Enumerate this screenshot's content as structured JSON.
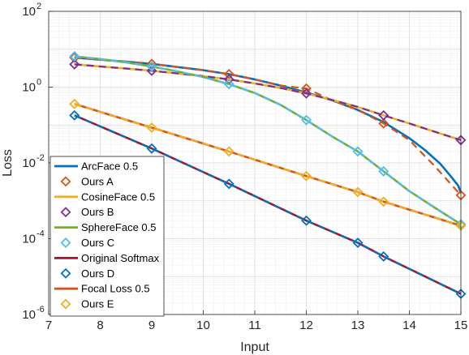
{
  "chart_data": {
    "type": "line",
    "title": "",
    "xlabel": "Input",
    "ylabel": "Loss",
    "xlim": [
      7,
      15
    ],
    "ylim": [
      1e-06,
      100
    ],
    "yscale": "log",
    "grid": true,
    "legend_position": "bottom-left",
    "xticks": [
      7,
      8,
      9,
      10,
      11,
      12,
      13,
      14,
      15
    ],
    "x_tick_labels": [
      "7",
      "8",
      "9",
      "10",
      "11",
      "12",
      "13",
      "14",
      "15"
    ],
    "y_tick_labels": [
      {
        "base": "10",
        "exp": "-6"
      },
      {
        "base": "10",
        "exp": "-4"
      },
      {
        "base": "10",
        "exp": "-2"
      },
      {
        "base": "10",
        "exp": "0"
      },
      {
        "base": "10",
        "exp": "2"
      }
    ],
    "series": [
      {
        "name": "ArcFace 0.5",
        "color": "#0072BD",
        "style": "solid",
        "marker": "none",
        "x": [
          7.5,
          8,
          8.5,
          9,
          9.5,
          10,
          10.5,
          11,
          11.5,
          12,
          12.5,
          13,
          13.5,
          14,
          14.3,
          14.6,
          14.8,
          14.95,
          15
        ],
        "y": [
          6.0,
          5.3,
          4.7,
          4.1,
          3.4,
          2.8,
          2.2,
          1.6,
          1.1,
          0.72,
          0.45,
          0.25,
          0.12,
          0.045,
          0.022,
          0.0095,
          0.0045,
          0.0025,
          0.0016
        ]
      },
      {
        "name": "Ours A",
        "color": "#D95319",
        "style": "dashed",
        "marker": "diamond",
        "x": [
          7.5,
          8,
          8.5,
          9,
          9.5,
          10,
          10.5,
          11,
          11.5,
          12,
          12.5,
          13,
          13.5,
          14,
          14.5,
          15
        ],
        "y": [
          6.0,
          5.3,
          4.7,
          4.1,
          3.4,
          2.8,
          2.2,
          1.6,
          1.1,
          0.92,
          0.45,
          0.25,
          0.11,
          0.04,
          0.008,
          0.0014
        ],
        "marker_x": [
          7.5,
          9,
          10.5,
          12,
          13.5,
          15
        ]
      },
      {
        "name": "CosineFace 0.5",
        "color": "#EDB120",
        "style": "solid",
        "marker": "none",
        "x": [
          7.5,
          8,
          8.5,
          9,
          9.5,
          10,
          10.5,
          11,
          11.5,
          12,
          12.5,
          13,
          13.5,
          14,
          14.5,
          15
        ],
        "y": [
          4.0,
          3.5,
          3.1,
          2.7,
          2.3,
          1.95,
          1.6,
          1.25,
          0.95,
          0.68,
          0.46,
          0.3,
          0.18,
          0.11,
          0.066,
          0.04
        ]
      },
      {
        "name": "Ours B",
        "color": "#7E2F8E",
        "style": "dashed",
        "marker": "diamond",
        "x": [
          7.5,
          8,
          8.5,
          9,
          9.5,
          10,
          10.5,
          11,
          11.5,
          12,
          12.5,
          13,
          13.5,
          14,
          14.5,
          15
        ],
        "y": [
          4.0,
          3.5,
          3.1,
          2.7,
          2.3,
          1.95,
          1.6,
          1.25,
          0.95,
          0.68,
          0.46,
          0.3,
          0.18,
          0.11,
          0.066,
          0.04
        ],
        "marker_x": [
          7.5,
          9,
          10.5,
          12,
          13.5,
          15
        ]
      },
      {
        "name": "SphereFace 0.5",
        "color": "#77AC30",
        "style": "solid",
        "marker": "none",
        "x": [
          7.5,
          8,
          8.5,
          9,
          9.5,
          10,
          10.5,
          11,
          11.5,
          12,
          12.5,
          13,
          13.5,
          14,
          14.5,
          15
        ],
        "y": [
          6.5,
          5.5,
          4.5,
          3.5,
          2.6,
          1.85,
          1.2,
          0.7,
          0.34,
          0.135,
          0.05,
          0.02,
          0.006,
          0.0018,
          0.00065,
          0.00024
        ]
      },
      {
        "name": "Ours C",
        "color": "#4DBEEE",
        "style": "dashed",
        "marker": "diamond",
        "x": [
          7.5,
          8,
          8.5,
          9,
          9.5,
          10,
          10.5,
          11,
          11.5,
          12,
          12.5,
          13,
          13.5,
          14,
          14.5,
          15
        ],
        "y": [
          6.5,
          5.5,
          4.5,
          3.5,
          2.6,
          1.85,
          1.2,
          0.7,
          0.34,
          0.135,
          0.05,
          0.02,
          0.006,
          0.0018,
          0.00065,
          0.00024
        ],
        "marker_x": [
          7.5,
          9,
          10.5,
          12,
          13,
          13.5,
          15
        ]
      },
      {
        "name": "Original Softmax",
        "color": "#A2142F",
        "style": "solid",
        "marker": "none",
        "x": [
          7.5,
          9,
          10.5,
          12,
          13,
          13.5,
          15
        ],
        "y": [
          0.18,
          0.024,
          0.0028,
          0.0003,
          7.8e-05,
          3.4e-05,
          3.5e-06
        ]
      },
      {
        "name": "Ours D",
        "color": "#0072BD",
        "style": "dashed",
        "marker": "diamond",
        "x": [
          7.5,
          9,
          10.5,
          12,
          13,
          13.5,
          15
        ],
        "y": [
          0.18,
          0.024,
          0.0028,
          0.0003,
          7.8e-05,
          3.4e-05,
          3.5e-06
        ],
        "marker_x": [
          7.5,
          9,
          10.5,
          12,
          13,
          13.5,
          15
        ]
      },
      {
        "name": "Focal Loss 0.5",
        "color": "#D95319",
        "style": "solid",
        "marker": "none",
        "x": [
          7.5,
          9,
          10.5,
          12,
          13,
          13.5,
          15
        ],
        "y": [
          0.36,
          0.085,
          0.02,
          0.0045,
          0.0017,
          0.00095,
          0.00022
        ]
      },
      {
        "name": "Ours E",
        "color": "#EDB120",
        "style": "dashed",
        "marker": "diamond",
        "x": [
          7.5,
          9,
          10.5,
          12,
          13,
          13.5,
          15
        ],
        "y": [
          0.36,
          0.085,
          0.02,
          0.0045,
          0.0017,
          0.00095,
          0.00022
        ],
        "marker_x": [
          7.5,
          9,
          10.5,
          12,
          13,
          13.5,
          15
        ]
      }
    ]
  }
}
